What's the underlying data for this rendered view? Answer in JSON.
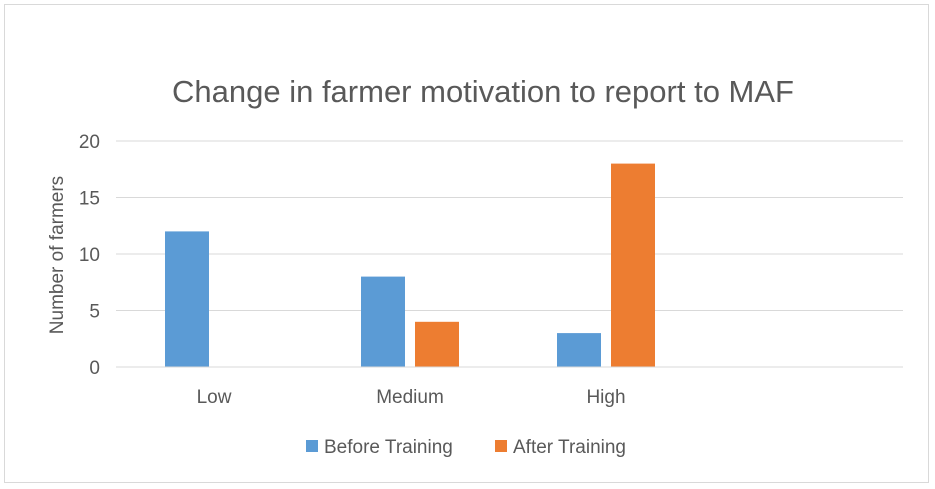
{
  "chart_data": {
    "type": "bar",
    "title": "Change in farmer motivation to report to MAF",
    "xlabel": "",
    "ylabel": "Number of farmers",
    "categories": [
      "Low",
      "Medium",
      "High"
    ],
    "series": [
      {
        "name": "Before Training",
        "values": [
          12,
          8,
          3
        ],
        "color": "#5b9bd5"
      },
      {
        "name": "After Training",
        "values": [
          0,
          4,
          18
        ],
        "color": "#ed7d31"
      }
    ],
    "ylim": [
      0,
      20
    ],
    "yticks": [
      0,
      5,
      10,
      15,
      20
    ],
    "grid": true,
    "legend_position": "bottom"
  }
}
